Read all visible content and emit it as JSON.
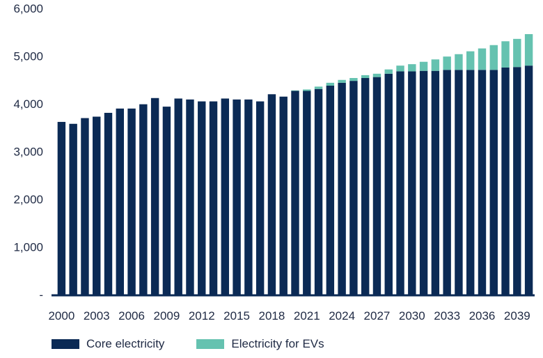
{
  "chart_data": {
    "type": "bar",
    "stacked": true,
    "categories": [
      "2000",
      "2001",
      "2002",
      "2003",
      "2004",
      "2005",
      "2006",
      "2007",
      "2008",
      "2009",
      "2010",
      "2011",
      "2012",
      "2013",
      "2014",
      "2015",
      "2016",
      "2017",
      "2018",
      "2019",
      "2020",
      "2021",
      "2022",
      "2023",
      "2024",
      "2025",
      "2026",
      "2027",
      "2028",
      "2029",
      "2030",
      "2031",
      "2032",
      "2033",
      "2034",
      "2035",
      "2036",
      "2037",
      "2038",
      "2039",
      "2040"
    ],
    "x_tick_labels": [
      "2000",
      "2003",
      "2006",
      "2009",
      "2012",
      "2015",
      "2018",
      "2021",
      "2024",
      "2027",
      "2030",
      "2033",
      "2036",
      "2039"
    ],
    "y_ticks": [
      0,
      1000,
      2000,
      3000,
      4000,
      5000,
      6000
    ],
    "y_tick_labels": [
      "-",
      "1,000",
      "2,000",
      "3,000",
      "4,000",
      "5,000",
      "6,000"
    ],
    "ylim": [
      0,
      6000
    ],
    "series": [
      {
        "name": "Core electricity",
        "color": "#0b2a55",
        "values": [
          3620,
          3580,
          3700,
          3730,
          3810,
          3900,
          3900,
          3990,
          4120,
          3940,
          4110,
          4090,
          4050,
          4050,
          4110,
          4090,
          4090,
          4050,
          4200,
          4150,
          4270,
          4270,
          4310,
          4380,
          4440,
          4480,
          4540,
          4560,
          4630,
          4680,
          4680,
          4690,
          4690,
          4710,
          4710,
          4710,
          4710,
          4710,
          4760,
          4770,
          4800
        ]
      },
      {
        "name": "Electricity for EVs",
        "color": "#65c2b0",
        "values": [
          0,
          0,
          0,
          0,
          0,
          0,
          0,
          0,
          0,
          0,
          0,
          0,
          0,
          0,
          0,
          0,
          0,
          0,
          0,
          0,
          10,
          30,
          50,
          60,
          60,
          60,
          60,
          70,
          90,
          120,
          150,
          190,
          240,
          280,
          330,
          390,
          450,
          520,
          550,
          590,
          660
        ]
      }
    ],
    "legend_position": "bottom-left",
    "grid": false
  }
}
